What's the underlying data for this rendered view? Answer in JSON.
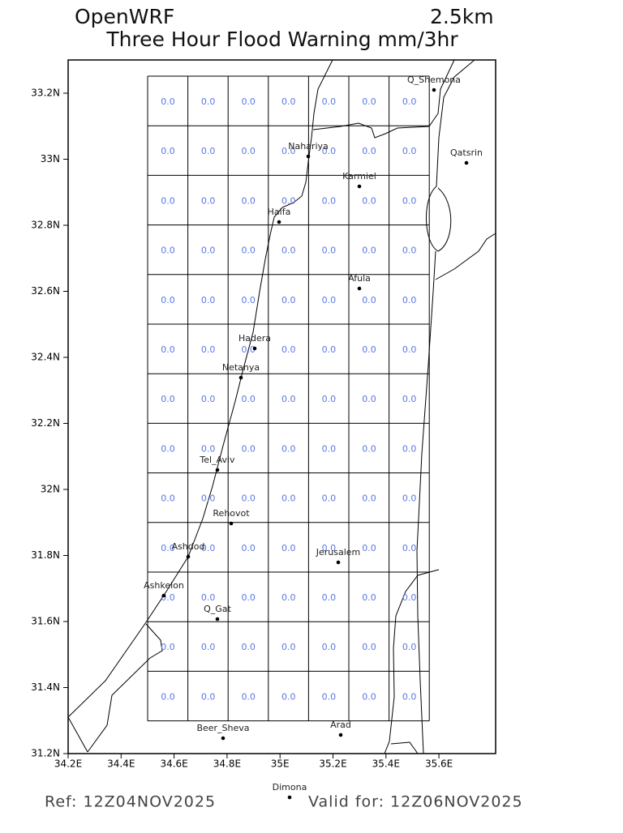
{
  "header": {
    "title": "OpenWRF",
    "resolution": "2.5km",
    "subtitle": "Three Hour Flood Warning mm/3hr"
  },
  "map": {
    "y_axis": [
      "33.2N",
      "33N",
      "32.8N",
      "32.6N",
      "32.4N",
      "32.2N",
      "32N",
      "31.8N",
      "31.6N",
      "31.4N",
      "31.2N"
    ],
    "x_axis": [
      "34.2E",
      "34.4E",
      "34.6E",
      "34.8E",
      "35E",
      "35.2E",
      "35.4E",
      "35.6E"
    ],
    "grid": [
      [
        "0.0",
        "0.0",
        "0.0",
        "0.0",
        "0.0",
        "0.0",
        "0.0"
      ],
      [
        "0.0",
        "0.0",
        "0.0",
        "0.0",
        "0.0",
        "0.0",
        "0.0"
      ],
      [
        "0.0",
        "0.0",
        "0.0",
        "0.0",
        "0.0",
        "0.0",
        "0.0"
      ],
      [
        "0.0",
        "0.0",
        "0.0",
        "0.0",
        "0.0",
        "0.0",
        "0.0"
      ],
      [
        "0.0",
        "0.0",
        "0.0",
        "0.0",
        "0.0",
        "0.0",
        "0.0"
      ],
      [
        "0.0",
        "0.0",
        "0.0",
        "0.0",
        "0.0",
        "0.0",
        "0.0"
      ],
      [
        "0.0",
        "0.0",
        "0.0",
        "0.0",
        "0.0",
        "0.0",
        "0.0"
      ],
      [
        "0.0",
        "0.0",
        "0.0",
        "0.0",
        "0.0",
        "0.0",
        "0.0"
      ],
      [
        "0.0",
        "0.0",
        "0.0",
        "0.0",
        "0.0",
        "0.0",
        "0.0"
      ],
      [
        "0.0",
        "0.0",
        "0.0",
        "0.0",
        "0.0",
        "0.0",
        "0.0"
      ],
      [
        "0.0",
        "0.0",
        "0.0",
        "0.0",
        "0.0",
        "0.0",
        "0.0"
      ],
      [
        "0.0",
        "0.0",
        "0.0",
        "0.0",
        "0.0",
        "0.0",
        "0.0"
      ],
      [
        "0.0",
        "0.0",
        "0.0",
        "0.0",
        "0.0",
        "0.0",
        "0.0"
      ]
    ],
    "cities": [
      "Q_Shemona",
      "Qatsrin",
      "Nahariya",
      "Karmiel",
      "Haifa",
      "Afula",
      "Hadera",
      "Netanya",
      "Tel_Aviv",
      "Rehovot",
      "Ashdod",
      "Jerusalem",
      "Ashkelon",
      "Q_Gat",
      "Beer_Sheva",
      "Arad",
      "Dimona"
    ]
  },
  "footer": {
    "ref": "Ref: 12Z04NOV2025",
    "valid": "Valid for: 12Z06NOV2025"
  }
}
